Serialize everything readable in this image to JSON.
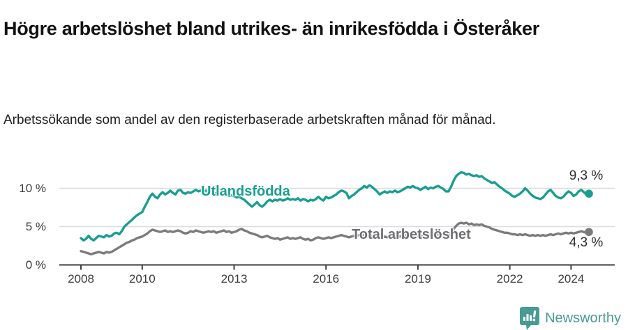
{
  "header": {
    "title": "Högre arbetslöshet bland utrikes- än inrikesfödda i Österåker",
    "subtitle": "Arbetssökande som andel av den registerbaserade arbetskraften månad för månad."
  },
  "chart_data": {
    "type": "line",
    "frequency": "monthly",
    "x_start_year": 2008.0,
    "x_end_year": 2024.583,
    "x_tick_years": [
      2008,
      2010,
      2013,
      2016,
      2019,
      2022,
      2024
    ],
    "x_tick_labels": [
      "2008",
      "2010",
      "2013",
      "2016",
      "2019",
      "2022",
      "2024"
    ],
    "y_tick_values": [
      10,
      5,
      0
    ],
    "y_tick_labels": [
      "10 %",
      "5 %",
      "0 %"
    ],
    "ylim": [
      0,
      13
    ],
    "grid": "horizontal-only",
    "legend_position": "inline-labels",
    "series": [
      {
        "name": "Utlandsfödda",
        "color": "#189e91",
        "end_value": 9.3,
        "end_label": "9,3 %",
        "values": [
          3.5,
          3.2,
          3.4,
          3.8,
          3.4,
          3.2,
          3.5,
          3.8,
          3.7,
          3.6,
          3.9,
          3.7,
          3.8,
          4.1,
          4.2,
          4.0,
          4.4,
          5.0,
          5.3,
          5.6,
          5.9,
          6.2,
          6.5,
          6.7,
          6.9,
          7.6,
          8.2,
          8.9,
          9.3,
          8.9,
          8.7,
          9.2,
          9.5,
          9.2,
          9.4,
          9.7,
          9.4,
          9.2,
          9.7,
          9.8,
          9.4,
          9.3,
          9.5,
          9.4,
          9.6,
          9.8,
          9.6,
          9.7,
          9.5,
          9.7,
          9.4,
          9.5,
          9.3,
          9.4,
          9.2,
          9.3,
          9.1,
          9.2,
          9.0,
          9.1,
          9.0,
          8.8,
          8.9,
          8.7,
          8.5,
          8.2,
          7.9,
          7.6,
          7.9,
          8.2,
          7.8,
          7.6,
          7.9,
          8.3,
          8.5,
          8.3,
          8.5,
          8.4,
          8.6,
          8.4,
          8.5,
          8.7,
          8.5,
          8.6,
          8.5,
          8.7,
          8.4,
          8.6,
          8.5,
          8.3,
          8.5,
          8.4,
          8.6,
          8.9,
          8.6,
          8.4,
          8.9,
          8.7,
          8.8,
          9.0,
          9.2,
          9.5,
          9.7,
          9.6,
          9.4,
          8.7,
          9.0,
          9.2,
          9.5,
          9.8,
          10.0,
          10.3,
          10.1,
          10.4,
          10.2,
          9.9,
          9.6,
          9.2,
          9.4,
          9.6,
          9.4,
          9.6,
          9.5,
          9.7,
          9.5,
          9.6,
          9.8,
          10.0,
          10.2,
          10.1,
          10.3,
          10.1,
          10.0,
          9.8,
          10.0,
          10.2,
          9.9,
          10.1,
          10.0,
          10.2,
          10.3,
          10.1,
          9.9,
          9.6,
          9.6,
          10.2,
          11.0,
          11.6,
          11.9,
          12.1,
          12.0,
          11.8,
          11.9,
          11.7,
          11.6,
          11.7,
          11.5,
          11.6,
          11.3,
          11.1,
          10.9,
          10.7,
          10.8,
          10.5,
          10.2,
          10.0,
          9.7,
          9.5,
          9.3,
          9.0,
          8.9,
          9.1,
          9.3,
          9.6,
          10.0,
          9.7,
          9.3,
          9.0,
          8.8,
          8.7,
          8.6,
          8.8,
          9.2,
          9.6,
          9.8,
          9.4,
          9.0,
          8.8,
          8.7,
          8.9,
          9.3,
          9.6,
          9.4,
          9.0,
          9.2,
          9.6,
          9.8,
          9.5,
          9.2,
          9.3
        ]
      },
      {
        "name": "Total arbetslöshet",
        "color": "#7b7b7b",
        "end_value": 4.3,
        "end_label": "4,3 %",
        "values": [
          1.8,
          1.7,
          1.6,
          1.5,
          1.4,
          1.5,
          1.6,
          1.7,
          1.6,
          1.5,
          1.7,
          1.6,
          1.7,
          1.9,
          2.1,
          2.3,
          2.5,
          2.7,
          2.9,
          3.0,
          3.2,
          3.3,
          3.5,
          3.6,
          3.7,
          3.9,
          4.1,
          4.4,
          4.6,
          4.5,
          4.4,
          4.3,
          4.4,
          4.5,
          4.3,
          4.4,
          4.3,
          4.4,
          4.5,
          4.4,
          4.2,
          4.1,
          4.2,
          4.4,
          4.3,
          4.5,
          4.4,
          4.3,
          4.2,
          4.3,
          4.4,
          4.3,
          4.4,
          4.2,
          4.3,
          4.4,
          4.5,
          4.3,
          4.4,
          4.2,
          4.3,
          4.4,
          4.6,
          4.7,
          4.5,
          4.4,
          4.2,
          4.1,
          4.0,
          3.9,
          3.7,
          3.6,
          3.7,
          3.8,
          3.6,
          3.5,
          3.4,
          3.5,
          3.3,
          3.4,
          3.5,
          3.6,
          3.4,
          3.5,
          3.4,
          3.5,
          3.6,
          3.4,
          3.3,
          3.4,
          3.2,
          3.3,
          3.5,
          3.6,
          3.5,
          3.4,
          3.5,
          3.6,
          3.5,
          3.6,
          3.7,
          3.8,
          3.9,
          3.8,
          3.7,
          3.6,
          3.7,
          3.8,
          3.8,
          3.9,
          4.0,
          3.9,
          3.8,
          3.9,
          3.8,
          3.7,
          3.6,
          3.5,
          3.6,
          3.7,
          3.6,
          3.7,
          3.6,
          3.7,
          3.8,
          3.7,
          3.8,
          3.9,
          3.8,
          3.9,
          3.8,
          3.7,
          3.8,
          3.7,
          3.8,
          3.9,
          3.8,
          3.9,
          4.0,
          3.9,
          4.0,
          4.1,
          4.0,
          3.9,
          4.0,
          4.2,
          4.7,
          5.1,
          5.4,
          5.5,
          5.4,
          5.5,
          5.3,
          5.4,
          5.2,
          5.3,
          5.2,
          5.3,
          5.1,
          5.0,
          4.9,
          4.7,
          4.6,
          4.5,
          4.4,
          4.3,
          4.2,
          4.2,
          4.1,
          4.0,
          4.0,
          3.9,
          4.0,
          3.9,
          4.0,
          3.9,
          3.8,
          3.9,
          3.8,
          3.9,
          3.8,
          3.9,
          3.8,
          3.9,
          4.0,
          3.9,
          4.0,
          4.1,
          4.0,
          4.1,
          4.2,
          4.1,
          4.2,
          4.1,
          4.2,
          4.3,
          4.4,
          4.3,
          4.2,
          4.3
        ]
      }
    ]
  },
  "style": {
    "grid_color": "#dcdcdc",
    "axis_color": "#3f3f3f",
    "line_width": 3.4
  },
  "branding": {
    "logo_text": "Newsworthy",
    "logo_color": "#479b94",
    "logo_icon": "speech-bubble-bar-chart-icon"
  }
}
